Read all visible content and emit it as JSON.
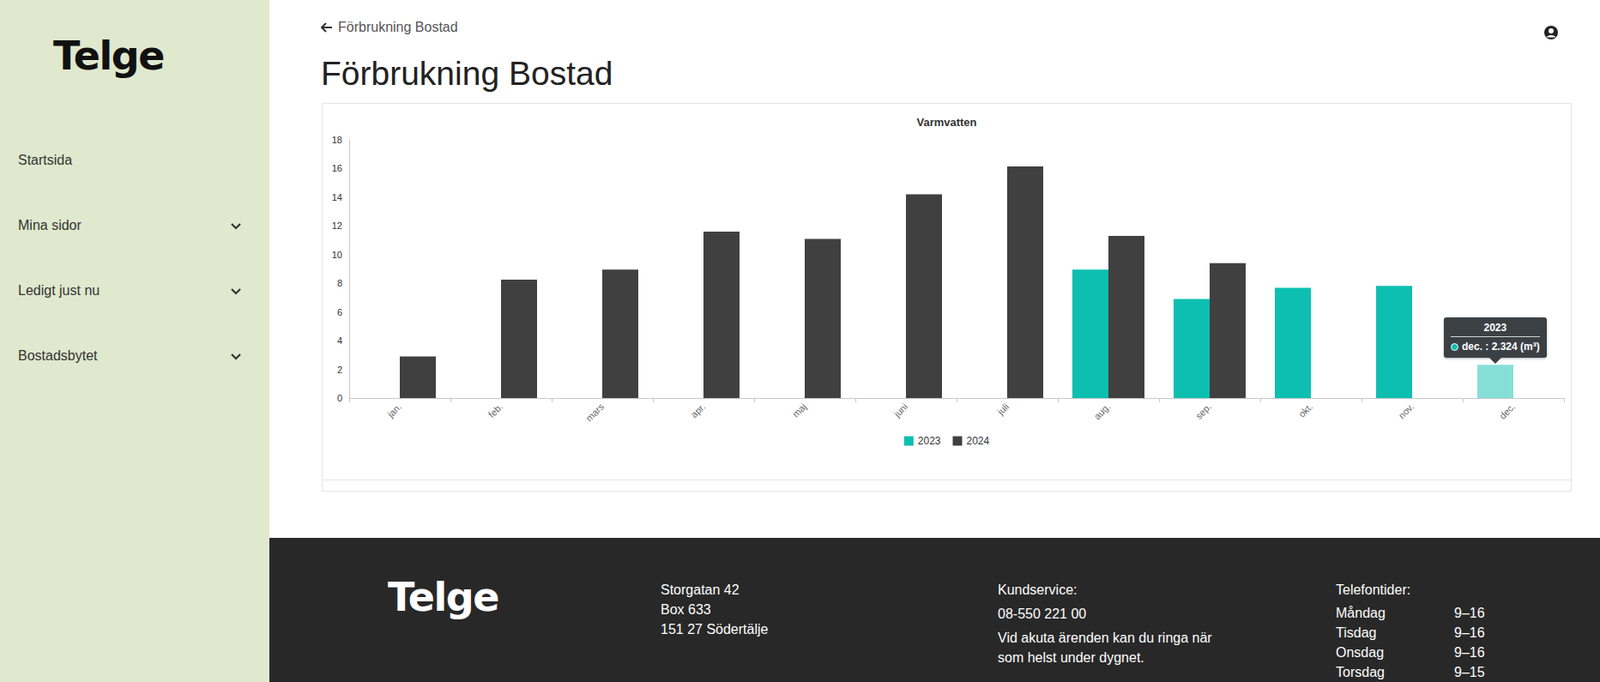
{
  "page": {
    "sidebar": {
      "logo": "Telge",
      "nav": [
        {
          "label": "Startsida",
          "expandable": false
        },
        {
          "label": "Mina sidor",
          "expandable": true
        },
        {
          "label": "Ledigt just nu",
          "expandable": true
        },
        {
          "label": "Bostadsbytet",
          "expandable": true
        }
      ]
    },
    "header": {
      "back_link": "Förbrukning Bostad",
      "title": "Förbrukning Bostad"
    },
    "tooltip": {
      "title": "2023",
      "text": "dec. : 2.324 (m³)"
    },
    "footer": {
      "logo": "Telge",
      "address": [
        "Storgatan 42",
        "Box 633",
        "151 27 Södertälje"
      ],
      "customer_service": {
        "heading": "Kundservice:",
        "phone": "08-550 221 00",
        "note": [
          "Vid akuta ärenden kan du ringa när",
          "som helst under dygnet."
        ]
      },
      "phone_hours": {
        "heading": "Telefontider:",
        "rows": [
          {
            "day": "Måndag",
            "hours": "9–16"
          },
          {
            "day": "Tisdag",
            "hours": "9–16"
          },
          {
            "day": "Onsdag",
            "hours": "9–16"
          },
          {
            "day": "Torsdag",
            "hours": "9–15"
          }
        ]
      }
    }
  },
  "chart_data": {
    "type": "bar",
    "title": "Varmvatten",
    "categories": [
      "jan.",
      "feb.",
      "mars",
      "apr.",
      "maj",
      "juni",
      "juli",
      "aug.",
      "sep.",
      "okt.",
      "nov.",
      "dec."
    ],
    "series": [
      {
        "name": "2023",
        "color": "#0dbfb0",
        "values": [
          null,
          null,
          null,
          null,
          null,
          null,
          null,
          8.96,
          6.9,
          7.68,
          7.82,
          2.324
        ]
      },
      {
        "name": "2024",
        "color": "#404040",
        "values": [
          2.9,
          8.25,
          8.96,
          11.6,
          11.1,
          14.2,
          16.15,
          11.3,
          9.4,
          null,
          null,
          null
        ]
      }
    ],
    "ylim": [
      0,
      18
    ],
    "yticks": [
      0,
      2,
      4,
      6,
      8,
      10,
      12,
      14,
      16,
      18
    ],
    "grid": false,
    "legend": "bottom"
  }
}
